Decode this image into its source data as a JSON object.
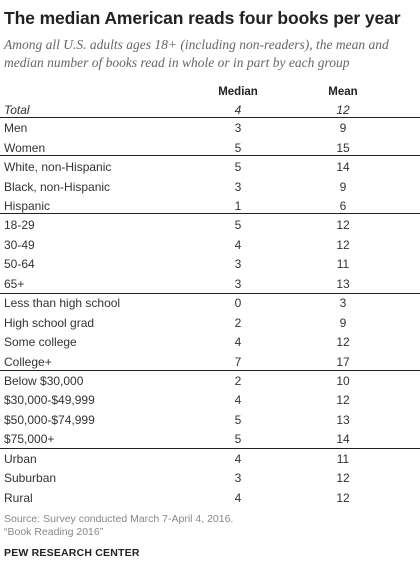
{
  "chart_data": {
    "type": "table",
    "title": "The median American reads four books per year",
    "subtitle": "Among all U.S. adults ages 18+ (including non-readers), the mean and median number of books read in whole or in part by each group",
    "columns": [
      "Median",
      "Mean"
    ],
    "rows": [
      {
        "label": "Total",
        "median": "4",
        "mean": "12"
      },
      {
        "label": "Men",
        "median": "3",
        "mean": "9"
      },
      {
        "label": "Women",
        "median": "5",
        "mean": "15"
      },
      {
        "label": "White, non-Hispanic",
        "median": "5",
        "mean": "14"
      },
      {
        "label": "Black, non-Hispanic",
        "median": "3",
        "mean": "9"
      },
      {
        "label": "Hispanic",
        "median": "1",
        "mean": "6"
      },
      {
        "label": "18-29",
        "median": "5",
        "mean": "12"
      },
      {
        "label": "30-49",
        "median": "4",
        "mean": "12"
      },
      {
        "label": "50-64",
        "median": "3",
        "mean": "11"
      },
      {
        "label": "65+",
        "median": "3",
        "mean": "13"
      },
      {
        "label": "Less than high school",
        "median": "0",
        "mean": "3"
      },
      {
        "label": "High school grad",
        "median": "2",
        "mean": "9"
      },
      {
        "label": "Some college",
        "median": "4",
        "mean": "12"
      },
      {
        "label": "College+",
        "median": "7",
        "mean": "17"
      },
      {
        "label": "Below $30,000",
        "median": "2",
        "mean": "10"
      },
      {
        "label": "$30,000-$49,999",
        "median": "4",
        "mean": "12"
      },
      {
        "label": "$50,000-$74,999",
        "median": "5",
        "mean": "13"
      },
      {
        "label": "$75,000+",
        "median": "5",
        "mean": "14"
      },
      {
        "label": "Urban",
        "median": "4",
        "mean": "11"
      },
      {
        "label": "Suburban",
        "median": "3",
        "mean": "12"
      },
      {
        "label": "Rural",
        "median": "4",
        "mean": "12"
      }
    ]
  },
  "footer": {
    "source_line1": "Source: Survey conducted March 7-April 4, 2016.",
    "source_line2": "“Book Reading 2016”",
    "credit": "PEW RESEARCH CENTER"
  }
}
